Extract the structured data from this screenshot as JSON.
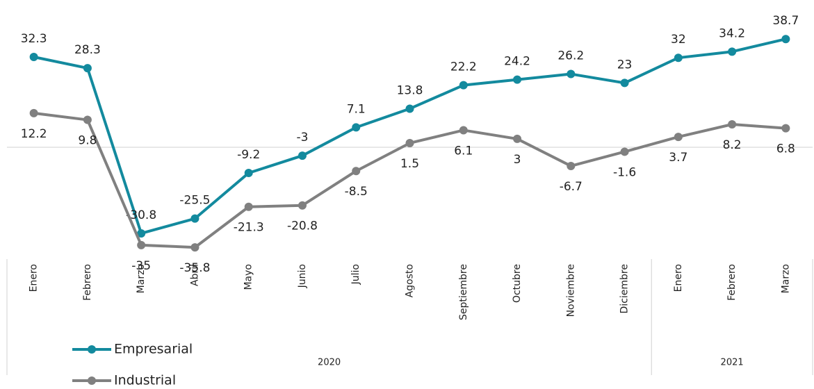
{
  "chart_data": {
    "type": "line",
    "groups": [
      {
        "name": "2020",
        "categories": [
          "Enero",
          "Febrero",
          "Marzo",
          "Abril",
          "Mayo",
          "Junio",
          "Julio",
          "Agosto",
          "Septiembre",
          "Octubre",
          "Noviembre",
          "Diciembre"
        ]
      },
      {
        "name": "2021",
        "categories": [
          "Enero",
          "Febrero",
          "Marzo"
        ]
      }
    ],
    "series": [
      {
        "name": "Empresarial",
        "color": "#138a9e",
        "values": [
          32.3,
          28.3,
          -30.8,
          -25.5,
          -9.2,
          -3,
          7.1,
          13.8,
          22.2,
          24.2,
          26.2,
          23,
          32,
          34.2,
          38.7
        ]
      },
      {
        "name": "Industrial",
        "color": "#808080",
        "values": [
          12.2,
          9.8,
          -35,
          -35.8,
          -21.3,
          -20.8,
          -8.5,
          1.5,
          6.1,
          3,
          -6.7,
          -1.6,
          3.7,
          8.2,
          6.8
        ]
      }
    ],
    "ylim": [
      -40,
      40
    ],
    "zero_line": true,
    "data_labels": true,
    "legend": "bottom-left"
  }
}
